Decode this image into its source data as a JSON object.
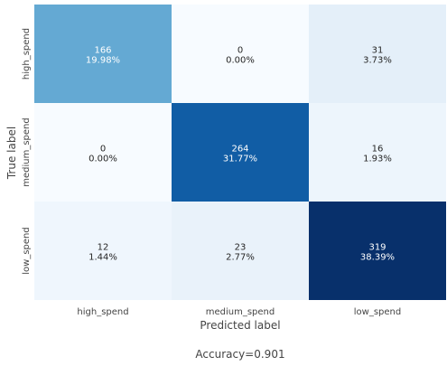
{
  "chart_data": {
    "type": "heatmap",
    "labels": [
      "high_spend",
      "medium_spend",
      "low_spend"
    ],
    "matrix": [
      [
        166,
        0,
        31
      ],
      [
        0,
        264,
        16
      ],
      [
        12,
        23,
        319
      ]
    ],
    "percentages": [
      [
        "19.98%",
        "0.00%",
        "3.73%"
      ],
      [
        "0.00%",
        "31.77%",
        "1.93%"
      ],
      [
        "1.44%",
        "2.77%",
        "38.39%"
      ]
    ],
    "xlabel": "Predicted label",
    "ylabel": "True label",
    "accuracy_text": "Accuracy=0.901",
    "colormap": "Blues",
    "colorbar": false
  }
}
